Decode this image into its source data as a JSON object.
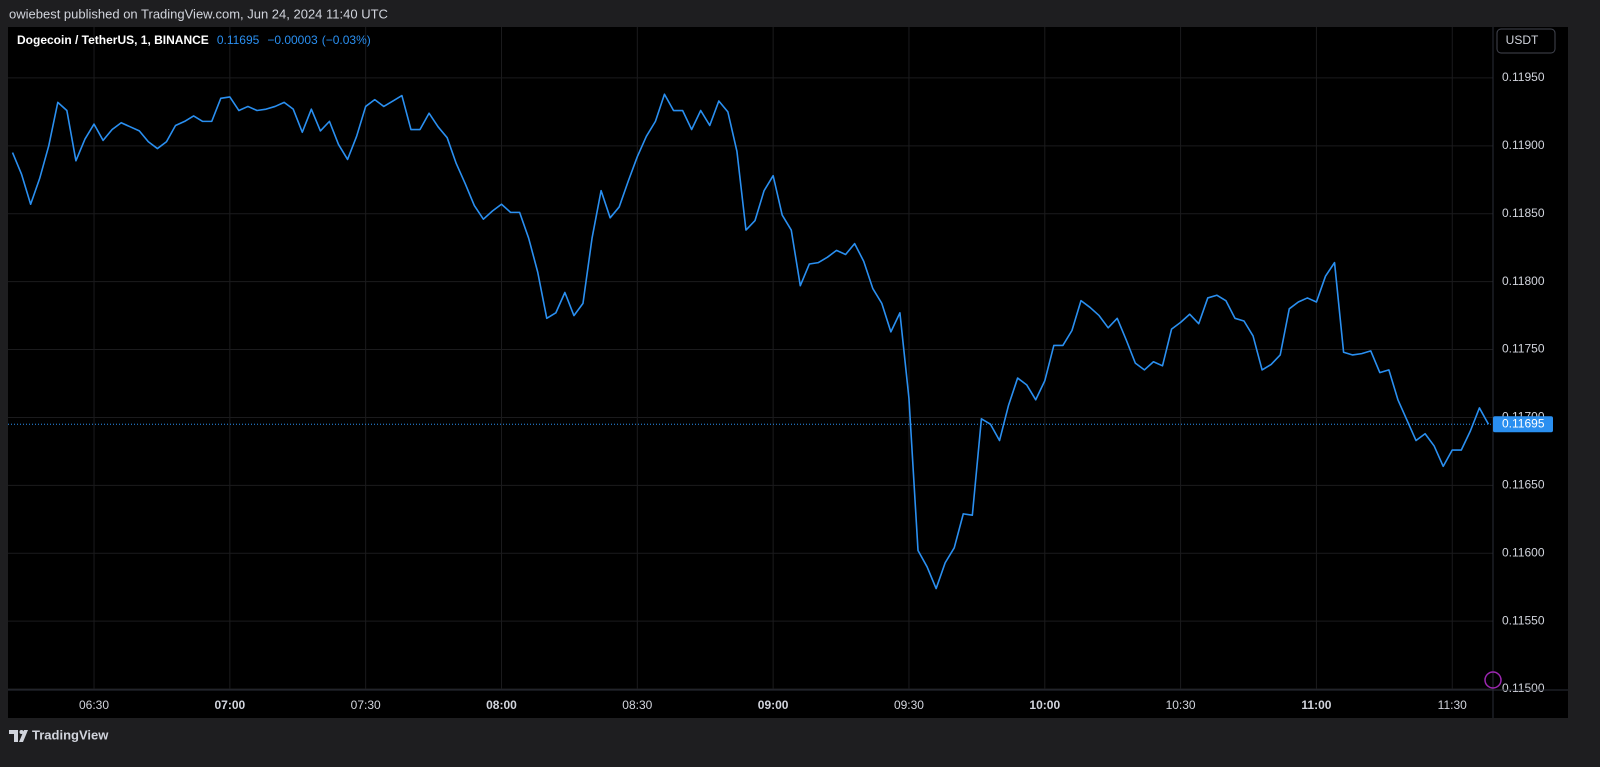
{
  "published": "owiebest published on TradingView.com, Jun 24, 2024 11:40 UTC",
  "brand": "TradingView",
  "chart_data": {
    "type": "line",
    "title": "Dogecoin / TetherUS, 1, BINANCE",
    "last_price": 0.11695,
    "change": "−0.00003",
    "change_pct": "(−0.03%)",
    "currency": "USDT",
    "color": "#2a8ff0",
    "grid": true,
    "x": [
      "06:12",
      "06:14",
      "06:16",
      "06:18",
      "06:20",
      "06:22",
      "06:24",
      "06:26",
      "06:28",
      "06:30",
      "06:32",
      "06:34",
      "06:36",
      "06:38",
      "06:40",
      "06:42",
      "06:44",
      "06:46",
      "06:48",
      "06:50",
      "06:52",
      "06:54",
      "06:56",
      "06:58",
      "07:00",
      "07:02",
      "07:04",
      "07:06",
      "07:08",
      "07:10",
      "07:12",
      "07:14",
      "07:16",
      "07:18",
      "07:20",
      "07:22",
      "07:24",
      "07:26",
      "07:28",
      "07:30",
      "07:32",
      "07:34",
      "07:36",
      "07:38",
      "07:40",
      "07:42",
      "07:44",
      "07:46",
      "07:48",
      "07:50",
      "07:52",
      "07:54",
      "07:56",
      "07:58",
      "08:00",
      "08:02",
      "08:04",
      "08:06",
      "08:08",
      "08:10",
      "08:12",
      "08:14",
      "08:16",
      "08:18",
      "08:20",
      "08:22",
      "08:24",
      "08:26",
      "08:28",
      "08:30",
      "08:32",
      "08:34",
      "08:36",
      "08:38",
      "08:40",
      "08:42",
      "08:44",
      "08:46",
      "08:48",
      "08:50",
      "08:52",
      "08:54",
      "08:56",
      "08:58",
      "09:00",
      "09:02",
      "09:04",
      "09:06",
      "09:08",
      "09:10",
      "09:12",
      "09:14",
      "09:16",
      "09:18",
      "09:20",
      "09:22",
      "09:24",
      "09:26",
      "09:28",
      "09:30",
      "09:32",
      "09:34",
      "09:36",
      "09:38",
      "09:40",
      "09:42",
      "09:44",
      "09:46",
      "09:48",
      "09:50",
      "09:52",
      "09:54",
      "09:56",
      "09:58",
      "10:00",
      "10:02",
      "10:04",
      "10:06",
      "10:08",
      "10:10",
      "10:12",
      "10:14",
      "10:16",
      "10:18",
      "10:20",
      "10:22",
      "10:24",
      "10:26",
      "10:28",
      "10:30",
      "10:32",
      "10:34",
      "10:36",
      "10:38",
      "10:40",
      "10:42",
      "10:44",
      "10:46",
      "10:48",
      "10:50",
      "10:52",
      "10:54",
      "10:56",
      "10:58",
      "11:00",
      "11:02",
      "11:04",
      "11:06",
      "11:08",
      "11:10",
      "11:12",
      "11:14",
      "11:16",
      "11:18",
      "11:20",
      "11:22",
      "11:24",
      "11:26",
      "11:28",
      "11:30",
      "11:32",
      "11:34",
      "11:36",
      "11:38"
    ],
    "values": [
      0.11895,
      0.11879,
      0.11857,
      0.11876,
      0.119,
      0.11932,
      0.11926,
      0.11889,
      0.11905,
      0.11916,
      0.11904,
      0.11912,
      0.11917,
      0.11914,
      0.11911,
      0.11903,
      0.11898,
      0.11903,
      0.11915,
      0.11918,
      0.11922,
      0.11918,
      0.11918,
      0.11935,
      0.11936,
      0.11926,
      0.11929,
      0.11926,
      0.11927,
      0.11929,
      0.11932,
      0.11927,
      0.1191,
      0.11927,
      0.11911,
      0.11918,
      0.11901,
      0.1189,
      0.11907,
      0.11929,
      0.11934,
      0.11929,
      0.11933,
      0.11937,
      0.11912,
      0.11912,
      0.11924,
      0.11914,
      0.11906,
      0.11887,
      0.11872,
      0.11856,
      0.11846,
      0.11852,
      0.11857,
      0.11851,
      0.11851,
      0.11832,
      0.11807,
      0.11773,
      0.11777,
      0.11792,
      0.11775,
      0.11784,
      0.11832,
      0.11867,
      0.11847,
      0.11855,
      0.11874,
      0.11892,
      0.11907,
      0.11918,
      0.11938,
      0.11926,
      0.11926,
      0.11912,
      0.11926,
      0.11915,
      0.11933,
      0.11925,
      0.11896,
      0.11838,
      0.11845,
      0.11867,
      0.11878,
      0.11849,
      0.11838,
      0.11797,
      0.11813,
      0.11814,
      0.11818,
      0.11823,
      0.1182,
      0.11828,
      0.11815,
      0.11795,
      0.11784,
      0.11763,
      0.11777,
      0.11714,
      0.11602,
      0.1159,
      0.11574,
      0.11593,
      0.11604,
      0.11629,
      0.11628,
      0.11699,
      0.11695,
      0.11683,
      0.11709,
      0.11729,
      0.11724,
      0.11713,
      0.11727,
      0.11753,
      0.11753,
      0.11764,
      0.11786,
      0.11781,
      0.11775,
      0.11766,
      0.11773,
      0.11757,
      0.1174,
      0.11735,
      0.11741,
      0.11738,
      0.11765,
      0.1177,
      0.11776,
      0.11769,
      0.11788,
      0.1179,
      0.11786,
      0.11773,
      0.11771,
      0.1176,
      0.11735,
      0.11739,
      0.11746,
      0.1178,
      0.11785,
      0.11788,
      0.11785,
      0.11804,
      0.11814,
      0.11748,
      0.11746,
      0.11747,
      0.11749,
      0.11733,
      0.11735,
      0.11713,
      0.11698,
      0.11683,
      0.11688,
      0.11679,
      0.11664,
      0.11676,
      0.11676,
      0.1169,
      0.11707,
      0.11695
    ],
    "xlim": [
      "06:11",
      "11:39"
    ],
    "xticks": [
      "06:30",
      "07:00",
      "07:30",
      "08:00",
      "08:30",
      "09:00",
      "09:30",
      "10:00",
      "10:30",
      "11:00",
      "11:30"
    ],
    "ylim": [
      0.114993,
      0.119875
    ],
    "yticks": [
      {
        "value": 0.115,
        "label": "0.11500"
      },
      {
        "value": 0.1155,
        "label": "0.11550"
      },
      {
        "value": 0.116,
        "label": "0.11600"
      },
      {
        "value": 0.1165,
        "label": "0.11650"
      },
      {
        "value": 0.117,
        "label": "0.11700"
      },
      {
        "value": 0.1175,
        "label": "0.11750"
      },
      {
        "value": 0.118,
        "label": "0.11800"
      },
      {
        "value": 0.1185,
        "label": "0.11850"
      },
      {
        "value": 0.119,
        "label": "0.11900"
      },
      {
        "value": 0.1195,
        "label": "0.11950"
      }
    ]
  }
}
